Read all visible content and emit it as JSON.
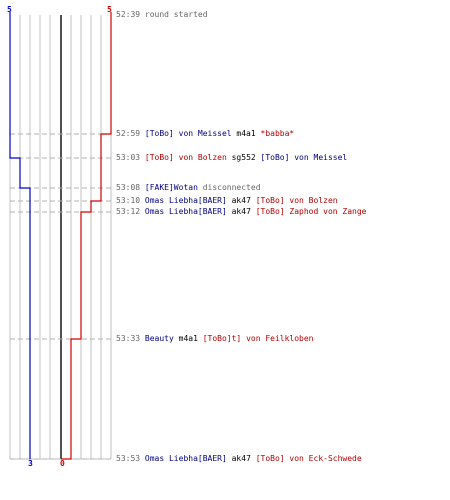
{
  "scores": {
    "blue_top": "5",
    "red_top": "5",
    "blue_bottom": "3",
    "red_bottom": "0"
  },
  "colors": {
    "blue": "#0000d0",
    "red": "#d00000",
    "grid": "#c0c0c0",
    "center": "#505050",
    "dash": "#b0b0b0"
  },
  "events": [
    {
      "time": "52:39",
      "parts": [
        {
          "text": "round started",
          "color": "gray"
        }
      ]
    },
    {
      "time": "52:59",
      "parts": [
        {
          "text": "[ToBo] von Meissel",
          "color": "blue"
        },
        {
          "text": " m4a1 ",
          "color": "black"
        },
        {
          "text": "*babba*",
          "color": "red"
        }
      ]
    },
    {
      "time": "53:03",
      "parts": [
        {
          "text": "[ToBo] von Bolzen",
          "color": "red"
        },
        {
          "text": " sg552 ",
          "color": "black"
        },
        {
          "text": "[ToBo] von Meissel",
          "color": "blue"
        }
      ]
    },
    {
      "time": "53:08",
      "parts": [
        {
          "text": "[FAKE]Wotan",
          "color": "blue"
        },
        {
          "text": " disconnected",
          "color": "gray"
        }
      ]
    },
    {
      "time": "53:10",
      "parts": [
        {
          "text": "Omas Liebha[BAER]",
          "color": "blue"
        },
        {
          "text": " ak47 ",
          "color": "black"
        },
        {
          "text": "[ToBo] von Bolzen",
          "color": "red"
        }
      ]
    },
    {
      "time": "53:12",
      "parts": [
        {
          "text": "Omas Liebha[BAER]",
          "color": "blue"
        },
        {
          "text": " ak47 ",
          "color": "black"
        },
        {
          "text": "[ToBo] Zaphod von Zange",
          "color": "red"
        }
      ]
    },
    {
      "time": "53:33",
      "parts": [
        {
          "text": "Beauty",
          "color": "blue"
        },
        {
          "text": " m4a1 ",
          "color": "black"
        },
        {
          "text": "[ToBo]t] von Feilkloben",
          "color": "red"
        }
      ]
    },
    {
      "time": "53:53",
      "parts": [
        {
          "text": "Omas Liebha[BAER]",
          "color": "blue"
        },
        {
          "text": " ak47 ",
          "color": "black"
        },
        {
          "text": "[ToBo] von Eck-Schwede",
          "color": "red"
        }
      ]
    }
  ]
}
